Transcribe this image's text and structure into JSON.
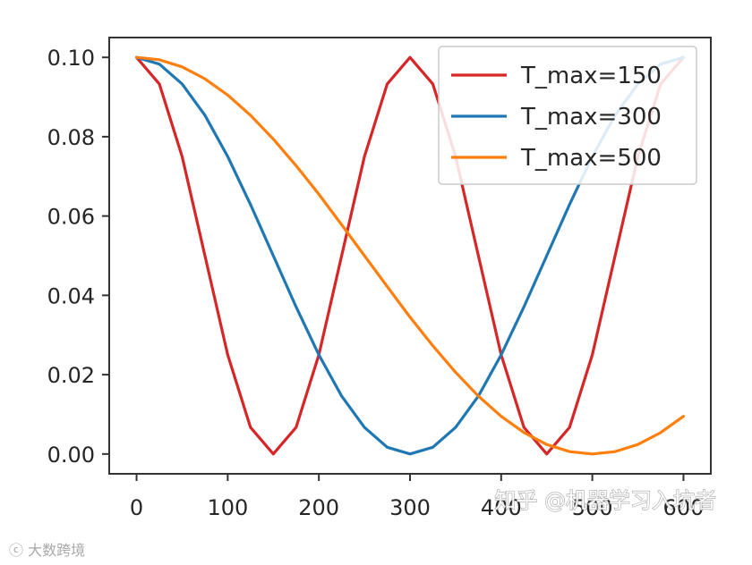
{
  "chart_data": {
    "type": "line",
    "title": "",
    "xlabel": "",
    "ylabel": "",
    "xlim": [
      -30,
      630
    ],
    "ylim": [
      -0.005,
      0.105
    ],
    "xticks": [
      0,
      100,
      200,
      300,
      400,
      500,
      600
    ],
    "xtick_labels": [
      "0",
      "100",
      "200",
      "300",
      "400",
      "500",
      "600"
    ],
    "yticks": [
      0.0,
      0.02,
      0.04,
      0.06,
      0.08,
      0.1
    ],
    "ytick_labels": [
      "0.00",
      "0.02",
      "0.04",
      "0.06",
      "0.08",
      "0.10"
    ],
    "grid": false,
    "legend_position": "top-right",
    "x": [
      0,
      25,
      50,
      75,
      100,
      125,
      150,
      175,
      200,
      225,
      250,
      275,
      300,
      325,
      350,
      375,
      400,
      425,
      450,
      475,
      500,
      525,
      550,
      575,
      600
    ],
    "series": [
      {
        "name": "T_max=150",
        "color": "#d62728",
        "values": [
          0.1,
          0.0933,
          0.075,
          0.05,
          0.025,
          0.0067,
          0.0,
          0.0067,
          0.025,
          0.05,
          0.075,
          0.0933,
          0.1,
          0.0933,
          0.075,
          0.05,
          0.025,
          0.0067,
          0.0,
          0.0067,
          0.025,
          0.05,
          0.075,
          0.0933,
          0.1
        ]
      },
      {
        "name": "T_max=300",
        "color": "#1f77b4",
        "values": [
          0.1,
          0.0983,
          0.0933,
          0.0854,
          0.075,
          0.0629,
          0.05,
          0.0371,
          0.025,
          0.0146,
          0.0067,
          0.0017,
          0.0,
          0.0017,
          0.0067,
          0.0146,
          0.025,
          0.0371,
          0.05,
          0.0629,
          0.075,
          0.0854,
          0.0933,
          0.0983,
          0.1
        ]
      },
      {
        "name": "T_max=500",
        "color": "#ff7f0e",
        "values": [
          0.1,
          0.0994,
          0.0976,
          0.0946,
          0.0905,
          0.0854,
          0.0794,
          0.0727,
          0.0655,
          0.0578,
          0.05,
          0.0422,
          0.0345,
          0.0273,
          0.0206,
          0.0146,
          0.0095,
          0.0054,
          0.0024,
          0.0006,
          0.0,
          0.0006,
          0.0024,
          0.0054,
          0.0095
        ]
      }
    ]
  },
  "watermark": {
    "main": "知乎 @机器学习入坑者",
    "footer": "大数跨境"
  },
  "colors": {
    "axes": "#333333",
    "background": "#ffffff"
  }
}
